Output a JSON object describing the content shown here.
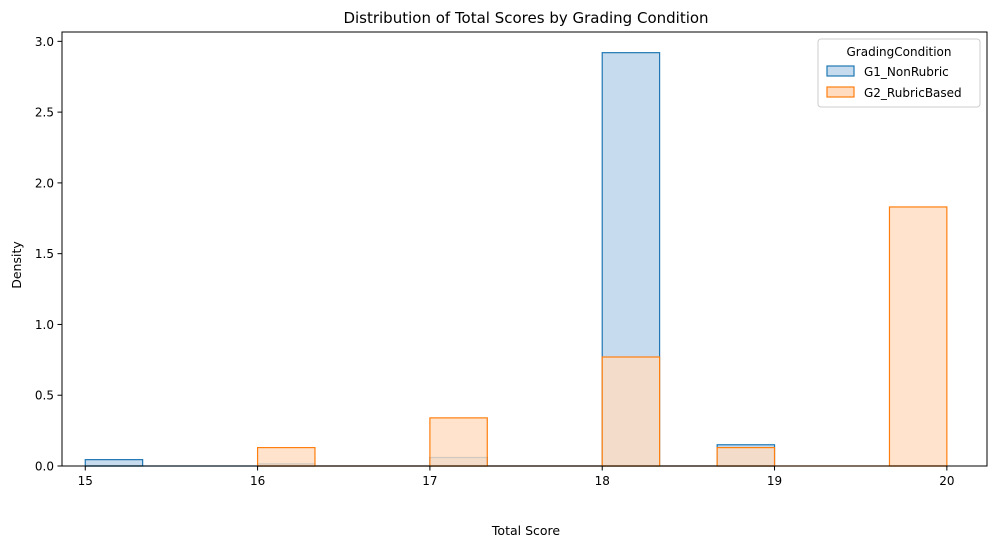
{
  "chart_data": {
    "type": "histogram",
    "title": "Distribution of Total Scores by Grading Condition",
    "xlabel": "Total Score",
    "ylabel": "Density",
    "xlim": [
      14.865,
      20.233
    ],
    "ylim": [
      0,
      3.066
    ],
    "x_ticks": [
      15,
      16,
      17,
      18,
      19,
      20
    ],
    "y_ticks": [
      0.0,
      0.5,
      1.0,
      1.5,
      2.0,
      2.5,
      3.0
    ],
    "x_tick_labels": [
      "15",
      "16",
      "17",
      "18",
      "19",
      "20"
    ],
    "y_tick_labels": [
      "0.0",
      "0.5",
      "1.0",
      "1.5",
      "2.0",
      "2.5",
      "3.0"
    ],
    "bin_width": 0.3333,
    "grid": false,
    "legend": {
      "title": "GradingCondition",
      "placement": "top-right"
    },
    "series": [
      {
        "name": "G1_NonRubric",
        "edge_color": "#1f77b4",
        "fill_color": "#c6dcee",
        "bins": [
          {
            "x0": 15.0,
            "x1": 15.333,
            "y": 0.045
          },
          {
            "x0": 16.0,
            "x1": 16.333,
            "y": 0.015
          },
          {
            "x0": 17.0,
            "x1": 17.333,
            "y": 0.06
          },
          {
            "x0": 18.0,
            "x1": 18.333,
            "y": 2.92
          },
          {
            "x0": 18.667,
            "x1": 19.0,
            "y": 0.15
          }
        ]
      },
      {
        "name": "G2_RubricBased",
        "edge_color": "#ff7f0e",
        "fill_color": "#ffdcc0",
        "bins": [
          {
            "x0": 16.0,
            "x1": 16.333,
            "y": 0.13
          },
          {
            "x0": 17.0,
            "x1": 17.333,
            "y": 0.34
          },
          {
            "x0": 18.0,
            "x1": 18.333,
            "y": 0.77
          },
          {
            "x0": 18.667,
            "x1": 19.0,
            "y": 0.13
          },
          {
            "x0": 19.667,
            "x1": 20.0,
            "y": 1.83
          }
        ]
      }
    ]
  }
}
